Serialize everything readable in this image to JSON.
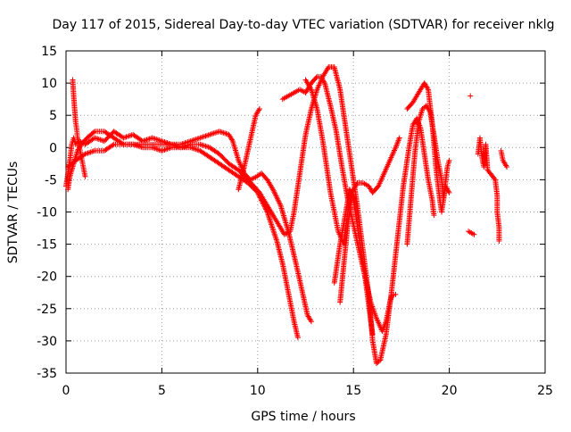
{
  "chart_data": {
    "type": "scatter",
    "title": "Day 117 of 2015, Sidereal Day-to-day VTEC variation (SDTVAR) for receiver nklg",
    "xlabel": "GPS time / hours",
    "ylabel": "SDTVAR / TECUs",
    "xlim": [
      0,
      25
    ],
    "ylim": [
      -35,
      15
    ],
    "xticks": [
      "0",
      "5",
      "10",
      "15",
      "20",
      "25"
    ],
    "yticks": [
      "15",
      "10",
      "5",
      "0",
      "-5",
      "-10",
      "-15",
      "-20",
      "-25",
      "-30",
      "-35"
    ],
    "grid": true,
    "marker": "plus",
    "color": "#ff0000",
    "series": [
      {
        "points": [
          [
            0.0,
            -6.0
          ],
          [
            0.1,
            -4.0
          ],
          [
            0.2,
            -2.0
          ],
          [
            0.3,
            0.5
          ],
          [
            0.4,
            1.5
          ],
          [
            0.5,
            0.5
          ],
          [
            0.7,
            1.0
          ],
          [
            1.0,
            0.5
          ],
          [
            1.5,
            1.5
          ],
          [
            2.0,
            1.0
          ],
          [
            2.5,
            2.5
          ],
          [
            3.0,
            1.5
          ],
          [
            3.5,
            2.0
          ],
          [
            4.0,
            1.0
          ],
          [
            4.5,
            1.5
          ],
          [
            5.0,
            1.0
          ],
          [
            5.5,
            0.5
          ],
          [
            6.0,
            0.5
          ],
          [
            6.5,
            1.0
          ],
          [
            7.0,
            1.5
          ],
          [
            7.5,
            2.0
          ],
          [
            8.0,
            2.5
          ],
          [
            8.5,
            2.0
          ],
          [
            8.7,
            1.0
          ],
          [
            8.8,
            0.0
          ],
          [
            9.0,
            -2.0
          ],
          [
            9.3,
            -4.0
          ],
          [
            9.6,
            -5.0
          ],
          [
            9.9,
            -4.6
          ],
          [
            10.2,
            -4.0
          ],
          [
            10.5,
            -5.0
          ],
          [
            10.8,
            -6.5
          ],
          [
            11.2,
            -9.0
          ],
          [
            11.6,
            -13.0
          ],
          [
            12.0,
            -18.0
          ],
          [
            12.3,
            -22.0
          ],
          [
            12.6,
            -26.0
          ],
          [
            12.8,
            -27.0
          ]
        ]
      },
      {
        "points": [
          [
            0.1,
            -3.0
          ],
          [
            0.5,
            -2.0
          ],
          [
            1.0,
            -1.0
          ],
          [
            1.5,
            -0.5
          ],
          [
            2.0,
            -0.5
          ],
          [
            2.5,
            0.5
          ],
          [
            3.0,
            0.5
          ],
          [
            3.5,
            0.5
          ],
          [
            4.0,
            0.5
          ],
          [
            4.5,
            0.5
          ],
          [
            5.0,
            0.5
          ],
          [
            5.5,
            0.5
          ],
          [
            6.0,
            0.0
          ],
          [
            6.5,
            0.0
          ],
          [
            7.0,
            -0.5
          ],
          [
            7.5,
            -1.5
          ],
          [
            8.0,
            -2.5
          ],
          [
            8.5,
            -3.5
          ],
          [
            9.0,
            -4.5
          ],
          [
            9.5,
            -5.5
          ],
          [
            10.0,
            -7.0
          ],
          [
            10.5,
            -10.0
          ],
          [
            11.0,
            -14.5
          ],
          [
            11.3,
            -18.0
          ],
          [
            11.6,
            -22.5
          ],
          [
            11.9,
            -27.0
          ],
          [
            12.1,
            -29.5
          ]
        ]
      },
      {
        "points": [
          [
            0.1,
            -6.5
          ],
          [
            0.2,
            -4.5
          ],
          [
            0.4,
            -2.5
          ],
          [
            0.6,
            -0.5
          ],
          [
            0.8,
            0.5
          ],
          [
            1.1,
            1.5
          ],
          [
            1.5,
            2.5
          ],
          [
            2.0,
            2.5
          ],
          [
            2.5,
            1.5
          ],
          [
            3.0,
            0.5
          ],
          [
            3.5,
            0.5
          ],
          [
            4.0,
            0.0
          ],
          [
            4.5,
            0.0
          ],
          [
            5.0,
            -0.5
          ],
          [
            5.5,
            0.0
          ],
          [
            6.0,
            0.0
          ],
          [
            6.5,
            0.5
          ],
          [
            7.0,
            0.5
          ],
          [
            7.5,
            0.0
          ],
          [
            8.0,
            -1.0
          ],
          [
            8.5,
            -2.5
          ],
          [
            9.0,
            -3.5
          ],
          [
            9.5,
            -5.0
          ],
          [
            9.8,
            -6.0
          ],
          [
            10.1,
            -7.0
          ],
          [
            10.4,
            -8.5
          ],
          [
            10.8,
            -10.5
          ],
          [
            11.1,
            -12.0
          ],
          [
            11.4,
            -13.5
          ],
          [
            11.7,
            -13.0
          ],
          [
            11.9,
            -10.0
          ],
          [
            12.1,
            -6.0
          ],
          [
            12.3,
            -2.0
          ],
          [
            12.5,
            2.0
          ],
          [
            12.8,
            6.0
          ],
          [
            13.1,
            9.0
          ],
          [
            13.4,
            11.0
          ],
          [
            13.7,
            12.5
          ],
          [
            14.0,
            12.5
          ],
          [
            14.3,
            9.0
          ],
          [
            14.6,
            3.0
          ],
          [
            14.9,
            -3.0
          ],
          [
            15.2,
            -9.0
          ],
          [
            15.5,
            -16.0
          ],
          [
            15.8,
            -23.0
          ],
          [
            16.0,
            -30.0
          ],
          [
            16.2,
            -33.5
          ],
          [
            16.4,
            -33.0
          ],
          [
            16.7,
            -29.0
          ],
          [
            17.0,
            -22.0
          ],
          [
            17.3,
            -14.0
          ],
          [
            17.6,
            -6.0
          ],
          [
            17.9,
            0.0
          ],
          [
            18.1,
            3.5
          ],
          [
            18.3,
            4.5
          ],
          [
            18.5,
            3.0
          ],
          [
            18.7,
            -1.0
          ],
          [
            18.9,
            -5.0
          ],
          [
            19.1,
            -8.0
          ],
          [
            19.2,
            -10.5
          ]
        ]
      },
      {
        "points": [
          [
            9.0,
            -6.5
          ],
          [
            9.3,
            -3.0
          ],
          [
            9.6,
            1.0
          ],
          [
            9.9,
            5.0
          ],
          [
            10.1,
            6.0
          ]
        ]
      },
      {
        "points": [
          [
            11.3,
            7.5
          ],
          [
            11.6,
            8.0
          ],
          [
            11.9,
            8.5
          ],
          [
            12.2,
            9.0
          ],
          [
            12.5,
            8.5
          ],
          [
            12.8,
            10.0
          ],
          [
            13.1,
            11.0
          ],
          [
            13.3,
            11.0
          ],
          [
            13.5,
            10.0
          ],
          [
            13.8,
            6.5
          ],
          [
            14.1,
            2.5
          ],
          [
            14.4,
            -3.0
          ],
          [
            14.7,
            -8.0
          ],
          [
            15.0,
            -12.0
          ],
          [
            15.3,
            -16.0
          ],
          [
            15.6,
            -20.0
          ],
          [
            15.9,
            -24.0
          ],
          [
            16.2,
            -26.5
          ],
          [
            16.5,
            -28.5
          ],
          [
            16.7,
            -27.0
          ],
          [
            16.9,
            -24.0
          ],
          [
            17.0,
            -23.0
          ],
          [
            17.2,
            -22.8
          ]
        ]
      },
      {
        "points": [
          [
            12.5,
            10.5
          ],
          [
            12.8,
            9.0
          ],
          [
            13.1,
            6.0
          ],
          [
            13.4,
            1.0
          ],
          [
            13.6,
            -3.0
          ],
          [
            13.8,
            -7.0
          ],
          [
            14.0,
            -10.0
          ],
          [
            14.2,
            -13.0
          ],
          [
            14.5,
            -15.0
          ],
          [
            14.7,
            -10.0
          ],
          [
            14.9,
            -7.0
          ],
          [
            15.2,
            -5.5
          ],
          [
            15.5,
            -5.5
          ],
          [
            15.8,
            -6.0
          ],
          [
            16.0,
            -7.0
          ],
          [
            16.3,
            -6.0
          ],
          [
            16.6,
            -4.0
          ],
          [
            16.9,
            -2.0
          ],
          [
            17.2,
            0.0
          ],
          [
            17.4,
            1.5
          ]
        ]
      },
      {
        "points": [
          [
            14.0,
            -21.0
          ],
          [
            14.3,
            -15.0
          ],
          [
            14.6,
            -10.0
          ],
          [
            14.8,
            -6.5
          ],
          [
            15.0,
            -8.0
          ],
          [
            15.2,
            -12.0
          ],
          [
            15.4,
            -16.0
          ],
          [
            15.6,
            -20.0
          ],
          [
            15.8,
            -24.5
          ],
          [
            16.0,
            -29.0
          ]
        ]
      },
      {
        "points": [
          [
            14.3,
            -24.0
          ],
          [
            14.5,
            -18.0
          ],
          [
            14.7,
            -12.0
          ],
          [
            14.9,
            -8.0
          ]
        ]
      },
      {
        "points": [
          [
            17.8,
            -15.0
          ],
          [
            18.0,
            -8.0
          ],
          [
            18.2,
            -1.0
          ],
          [
            18.4,
            4.0
          ],
          [
            18.6,
            6.0
          ],
          [
            18.8,
            6.5
          ],
          [
            19.0,
            5.5
          ],
          [
            19.2,
            2.0
          ],
          [
            19.4,
            -2.0
          ],
          [
            19.6,
            -5.0
          ],
          [
            19.7,
            -8.0
          ],
          [
            19.9,
            -3.0
          ],
          [
            20.0,
            -2.0
          ]
        ]
      },
      {
        "points": [
          [
            17.8,
            6.0
          ],
          [
            18.1,
            7.0
          ],
          [
            18.4,
            8.5
          ],
          [
            18.7,
            10.0
          ],
          [
            18.9,
            9.0
          ],
          [
            19.1,
            4.0
          ],
          [
            19.3,
            -3.0
          ],
          [
            19.5,
            -8.0
          ],
          [
            19.6,
            -10.0
          ],
          [
            19.8,
            -6.0
          ],
          [
            20.0,
            -7.0
          ]
        ]
      },
      {
        "points": [
          [
            0.35,
            10.5
          ],
          [
            0.4,
            8.0
          ],
          [
            0.45,
            6.0
          ],
          [
            0.5,
            4.0
          ],
          [
            0.55,
            3.0
          ],
          [
            0.6,
            1.5
          ],
          [
            0.7,
            0.0
          ],
          [
            0.8,
            -1.5
          ],
          [
            0.9,
            -3.0
          ],
          [
            1.0,
            -4.5
          ]
        ]
      },
      {
        "points": [
          [
            21.1,
            8.0
          ],
          [
            21.0,
            -13.0
          ],
          [
            21.3,
            -13.5
          ],
          [
            21.5,
            -1.0
          ],
          [
            21.6,
            1.5
          ],
          [
            21.7,
            -1.5
          ],
          [
            21.8,
            -3.0
          ],
          [
            21.9,
            0.5
          ],
          [
            22.0,
            -3.5
          ],
          [
            22.4,
            -5.0
          ],
          [
            22.5,
            -7.5
          ],
          [
            22.5,
            -10.0
          ],
          [
            22.6,
            -12.5
          ],
          [
            22.6,
            -14.5
          ],
          [
            22.7,
            -0.5
          ],
          [
            22.8,
            -2.0
          ],
          [
            23.0,
            -3.0
          ]
        ]
      }
    ]
  }
}
